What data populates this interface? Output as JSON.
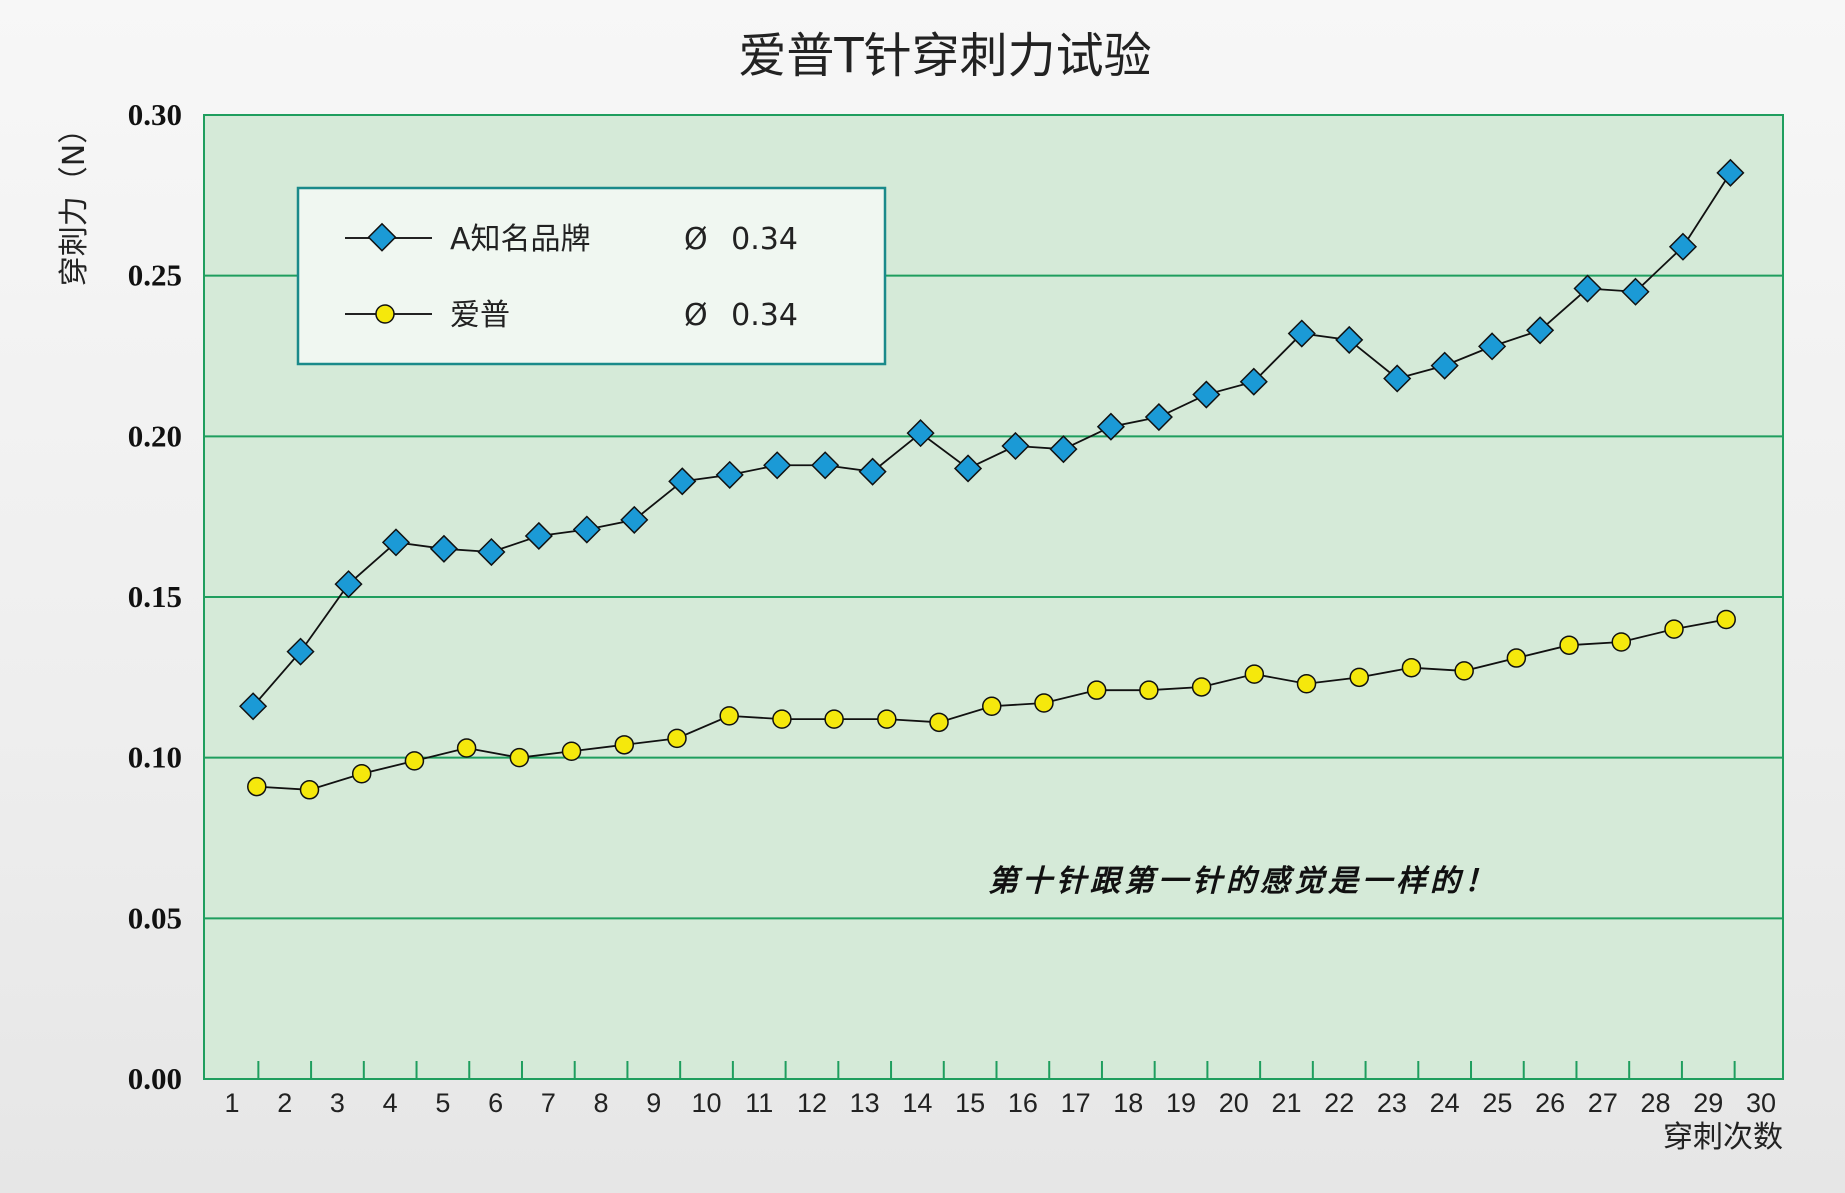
{
  "chart_data": {
    "type": "line",
    "title": "爱普T针穿刺力试验",
    "ylabel": "穿刺力（N）",
    "xlabel": "穿刺次数",
    "xlim": [
      1,
      30
    ],
    "ylim": [
      0,
      0.3
    ],
    "yticks": [
      "0.00",
      "0.05",
      "0.10",
      "0.15",
      "0.20",
      "0.25",
      "0.30"
    ],
    "xticks": [
      "1",
      "2",
      "3",
      "4",
      "5",
      "6",
      "7",
      "8",
      "9",
      "10",
      "11",
      "12",
      "13",
      "14",
      "15",
      "16",
      "17",
      "18",
      "19",
      "20",
      "21",
      "22",
      "23",
      "24",
      "25",
      "26",
      "27",
      "28",
      "29",
      "30"
    ],
    "grid": true,
    "legend_position": "top-left",
    "annotation": "第十针跟第一针的感觉是一样的！",
    "colors": {
      "plot_bg": "#d5ead8",
      "grid": "#1f9e5e",
      "series_a": "#1b9ad6",
      "series_b": "#f5e80c"
    },
    "series": [
      {
        "name": "A知名品牌",
        "spec": "Ø 0.34",
        "marker": "diamond",
        "x": [
          1.4,
          2.3,
          3.21,
          4.11,
          5.02,
          5.92,
          6.82,
          7.73,
          8.63,
          9.54,
          10.44,
          11.34,
          12.25,
          13.15,
          14.06,
          14.96,
          15.86,
          16.77,
          17.67,
          18.58,
          19.48,
          20.38,
          21.29,
          22.19,
          23.1,
          24.0,
          24.9,
          25.81,
          26.71,
          27.62,
          28.52,
          29.42
        ],
        "values": [
          0.116,
          0.133,
          0.154,
          0.167,
          0.165,
          0.164,
          0.169,
          0.171,
          0.174,
          0.186,
          0.188,
          0.191,
          0.191,
          0.189,
          0.201,
          0.19,
          0.197,
          0.196,
          0.203,
          0.206,
          0.213,
          0.217,
          0.232,
          0.23,
          0.218,
          0.222,
          0.228,
          0.233,
          0.246,
          0.245,
          0.259,
          0.282
        ]
      },
      {
        "name": "爱普",
        "spec": "Ø 0.34",
        "marker": "circle",
        "x": [
          1.47,
          2.47,
          3.46,
          4.46,
          5.45,
          6.45,
          7.44,
          8.44,
          9.44,
          10.43,
          11.43,
          12.42,
          13.42,
          14.41,
          15.41,
          16.4,
          17.4,
          18.39,
          19.39,
          20.39,
          21.38,
          22.38,
          23.37,
          24.37,
          25.36,
          26.36,
          27.35,
          28.35,
          29.34
        ],
        "values": [
          0.091,
          0.09,
          0.095,
          0.099,
          0.103,
          0.1,
          0.102,
          0.104,
          0.106,
          0.113,
          0.112,
          0.112,
          0.112,
          0.111,
          0.116,
          0.117,
          0.121,
          0.121,
          0.122,
          0.126,
          0.123,
          0.125,
          0.128,
          0.127,
          0.131,
          0.135,
          0.136,
          0.14,
          0.143
        ]
      }
    ]
  }
}
